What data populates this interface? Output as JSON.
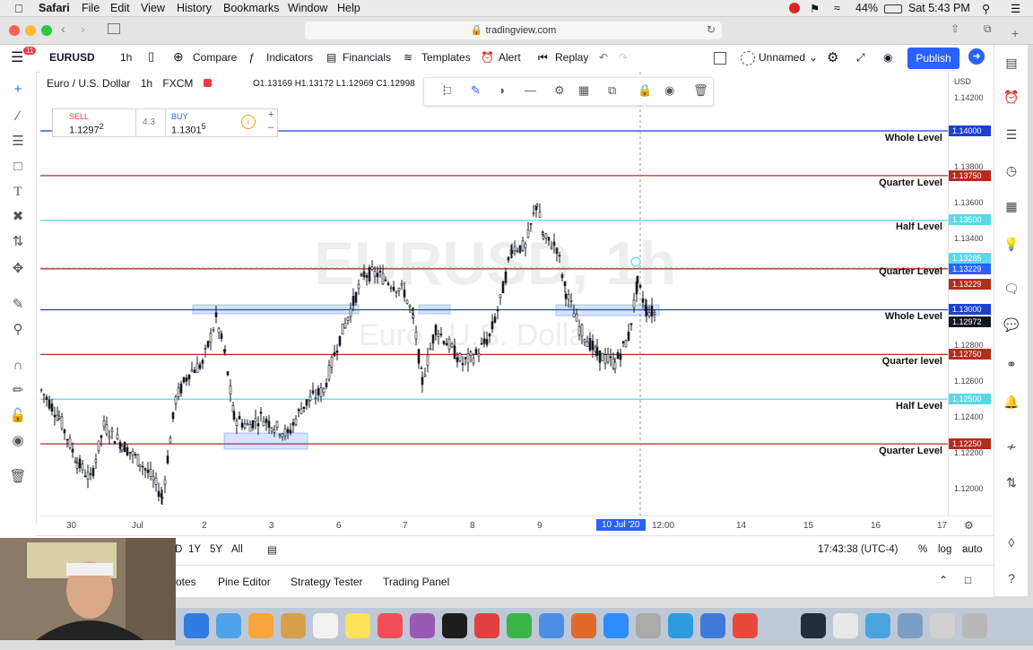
{
  "menubar": {
    "items": [
      "Safari",
      "File",
      "Edit",
      "View",
      "History",
      "Bookmarks",
      "Window",
      "Help"
    ],
    "battery": "44%",
    "clock": "Sat 5:43 PM"
  },
  "browser": {
    "url": "tradingview.com"
  },
  "toolbar": {
    "symbol": "EURUSD",
    "interval": "1h",
    "compare": "Compare",
    "indicators": "Indicators",
    "financials": "Financials",
    "templates": "Templates",
    "alert": "Alert",
    "replay": "Replay",
    "layout_name": "Unnamed",
    "publish": "Publish",
    "notif_count": "11"
  },
  "legend": {
    "name": "Euro / U.S. Dollar",
    "interval": "1h",
    "exchange": "FXCM",
    "ohlc": "O1.13169  H1.13172  L1.12969  C1.12998"
  },
  "trade": {
    "sell_label": "SELL",
    "sell_price": "1.1297",
    "sell_sup": "2",
    "spread": "4.3",
    "buy_label": "BUY",
    "buy_price": "1.1301",
    "buy_sup": "5"
  },
  "watermark": {
    "symbol": "EURUSD, 1h",
    "name": "Euro / U.S. Dollar"
  },
  "levels": [
    {
      "label": "Whole Level",
      "price": "1.14000",
      "color": "#1c3fd4"
    },
    {
      "label": "Quarter Level",
      "price": "1.13750",
      "color": "#b22d1c"
    },
    {
      "label": "Half Level",
      "price": "1.13500",
      "color": "#5ad8ea"
    },
    {
      "label": "Quarter Level",
      "price": "1.13229",
      "color": "#b22d1c"
    },
    {
      "label": "Whole Level",
      "price": "1.13000",
      "color": "#1c3fd4"
    },
    {
      "label": "Quarter level",
      "price": "1.12750",
      "color": "#b22d1c"
    },
    {
      "label": "Half Level",
      "price": "1.12500",
      "color": "#5ad8ea"
    },
    {
      "label": "Quarter Level",
      "price": "1.12250",
      "color": "#b22d1c"
    }
  ],
  "price_axis": {
    "currency": "USD",
    "ticks": [
      "1.14200",
      "1.13800",
      "1.13600",
      "1.13400",
      "1.12800",
      "1.12600",
      "1.12400",
      "1.12200",
      "1.12000"
    ],
    "tags": [
      {
        "text": "1.13285",
        "color": "#5ad8ea"
      },
      {
        "text": "1.13229",
        "color": "#2962ff"
      },
      {
        "text": "1.12972",
        "color": "#131722"
      }
    ]
  },
  "time_axis": {
    "labels": [
      "30",
      "Jul",
      "2",
      "3",
      "6",
      "7",
      "8",
      "9",
      "12:00",
      "14",
      "15",
      "16",
      "17"
    ],
    "cursor": "10 Jul '20"
  },
  "bottom": {
    "ranges": [
      "D",
      "1Y",
      "5Y",
      "All"
    ],
    "time": "17:43:38 (UTC-4)",
    "percent": "%",
    "log": "log",
    "auto": "auto"
  },
  "panels": {
    "tabs": [
      "otes",
      "Pine Editor",
      "Strategy Tester",
      "Trading Panel"
    ]
  }
}
